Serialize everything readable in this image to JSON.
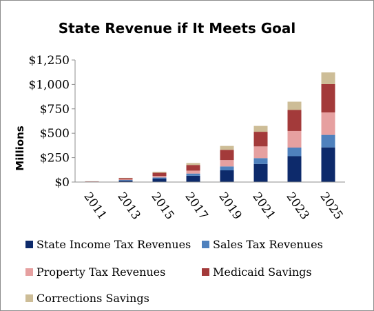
{
  "chart_data": {
    "type": "bar",
    "stacked": true,
    "title": "State Revenue if It Meets Goal",
    "xlabel": "",
    "ylabel": "Millions",
    "ylim": [
      0,
      1250
    ],
    "yticks": [
      0,
      250,
      500,
      750,
      1000,
      1250
    ],
    "ytick_labels": [
      "$0",
      "$250",
      "$500",
      "$750",
      "$1,000",
      "$1,250"
    ],
    "categories": [
      "2011",
      "2013",
      "2015",
      "2017",
      "2019",
      "2021",
      "2023",
      "2025"
    ],
    "series": [
      {
        "name": "State Income Tax Revenues",
        "color": "#0d2a6b",
        "values": [
          3,
          15,
          35,
          65,
          120,
          185,
          265,
          355
        ]
      },
      {
        "name": "Sales Tax Revenues",
        "color": "#4f81bd",
        "values": [
          1,
          6,
          12,
          22,
          40,
          60,
          88,
          128
        ]
      },
      {
        "name": "Property Tax Revenues",
        "color": "#e6a0a0",
        "values": [
          1,
          6,
          15,
          30,
          65,
          120,
          170,
          230
        ]
      },
      {
        "name": "Medicaid Savings",
        "color": "#a33a3a",
        "values": [
          2,
          13,
          33,
          58,
          105,
          150,
          215,
          290
        ]
      },
      {
        "name": "Corrections Savings",
        "color": "#cdbd97",
        "values": [
          1,
          3,
          10,
          20,
          40,
          60,
          85,
          120
        ]
      }
    ],
    "grid": false,
    "legend_position": "bottom"
  }
}
